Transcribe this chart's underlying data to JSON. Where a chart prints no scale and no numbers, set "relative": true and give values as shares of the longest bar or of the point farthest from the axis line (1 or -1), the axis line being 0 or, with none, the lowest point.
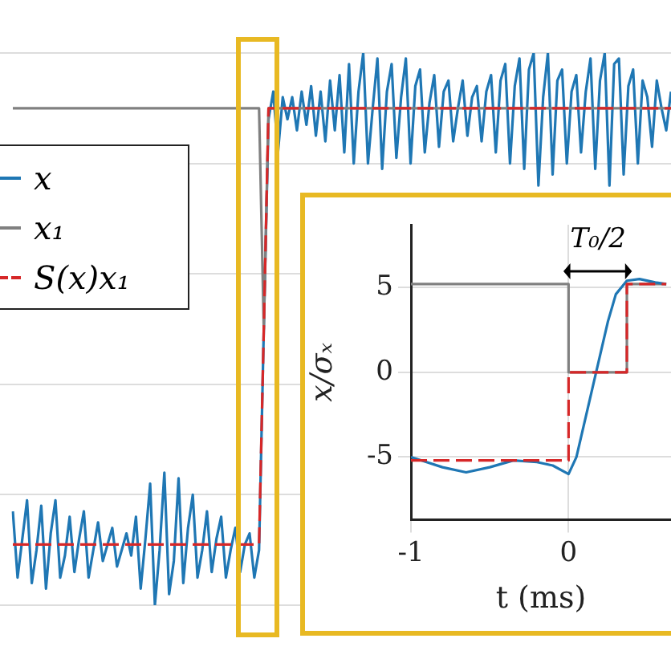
{
  "chart_data": [
    {
      "type": "line",
      "relative": true,
      "grid": "y",
      "legend": "left",
      "marker": "none",
      "categories": [
        null,
        null,
        null,
        null,
        null,
        null,
        null,
        null,
        null,
        null,
        null,
        null,
        null,
        null,
        null,
        null,
        null,
        null,
        null,
        null,
        null,
        null,
        null,
        null,
        null,
        null,
        null,
        null,
        null,
        null,
        null,
        null,
        null,
        null,
        null,
        null,
        null,
        null,
        null,
        null,
        null,
        null,
        null,
        null,
        null,
        null,
        null,
        null,
        null,
        null,
        null,
        null,
        null,
        null,
        null,
        null,
        null,
        null,
        null,
        null,
        null,
        null,
        null,
        null,
        null,
        null,
        null,
        null,
        null,
        null,
        null,
        null,
        null,
        null,
        null,
        null,
        null,
        null,
        null,
        null,
        null,
        null,
        null,
        null,
        null,
        null,
        null,
        null,
        null,
        null,
        null,
        null,
        null,
        null,
        null,
        null,
        null,
        null,
        null,
        null,
        null,
        null,
        null,
        null,
        null,
        null,
        null,
        null,
        null,
        null,
        null,
        null,
        null,
        null,
        null,
        null,
        null,
        null,
        null,
        null,
        null,
        null,
        null,
        null,
        null,
        null,
        null,
        null,
        null,
        null,
        null,
        null,
        null,
        null,
        null,
        null,
        null,
        null,
        null,
        null
      ],
      "series": [
        {
          "name": "x",
          "color": "#1f77b4",
          "line_style": "solid",
          "values": [
            0.17,
            0.05,
            0.12,
            0.19,
            0.04,
            0.1,
            0.18,
            0.03,
            0.13,
            0.19,
            0.05,
            0.09,
            0.16,
            0.06,
            0.12,
            0.17,
            0.05,
            0.1,
            0.15,
            0.08,
            0.11,
            0.14,
            0.07,
            0.1,
            0.13,
            0.09,
            0.16,
            0.03,
            0.12,
            0.22,
            0.0,
            0.1,
            0.24,
            0.02,
            0.08,
            0.23,
            0.04,
            0.14,
            0.2,
            0.05,
            0.1,
            0.17,
            0.06,
            0.12,
            0.16,
            0.05,
            0.1,
            0.14,
            0.06,
            0.11,
            0.13,
            0.05,
            0.1,
            0.5,
            0.88,
            0.93,
            0.82,
            0.92,
            0.88,
            0.92,
            0.86,
            0.93,
            0.87,
            0.94,
            0.85,
            0.93,
            0.84,
            0.95,
            0.86,
            0.96,
            0.82,
            0.98,
            0.8,
            0.93,
            1.0,
            0.8,
            0.9,
            0.99,
            0.79,
            0.93,
            0.98,
            0.81,
            0.92,
            0.99,
            0.8,
            0.94,
            0.97,
            0.82,
            0.91,
            0.96,
            0.83,
            0.93,
            0.95,
            0.84,
            0.9,
            0.95,
            0.85,
            0.92,
            0.94,
            0.84,
            0.93,
            0.96,
            0.82,
            0.95,
            0.98,
            0.8,
            0.94,
            0.99,
            0.79,
            0.97,
            1.0,
            0.76,
            0.92,
            1.0,
            0.78,
            0.95,
            0.97,
            0.8,
            0.93,
            0.96,
            0.82,
            0.93,
            0.99,
            0.79,
            0.95,
            1.0,
            0.76,
            0.98,
            0.99,
            0.78,
            0.94,
            0.97,
            0.8,
            0.95,
            0.92,
            0.83,
            0.95,
            0.9,
            0.86,
            0.93
          ]
        },
        {
          "name": "x₁",
          "color": "#808080",
          "line_style": "solid",
          "values": [
            0.9,
            0.9,
            0.9,
            0.9,
            0.9,
            0.9,
            0.9,
            0.9,
            0.9,
            0.9,
            0.9,
            0.9,
            0.9,
            0.9,
            0.9,
            0.9,
            0.9,
            0.9,
            0.9,
            0.9,
            0.9,
            0.9,
            0.9,
            0.9,
            0.9,
            0.9,
            0.9,
            0.9,
            0.9,
            0.9,
            0.9,
            0.9,
            0.9,
            0.9,
            0.9,
            0.9,
            0.9,
            0.9,
            0.9,
            0.9,
            0.9,
            0.9,
            0.9,
            0.9,
            0.9,
            0.9,
            0.9,
            0.9,
            0.9,
            0.9,
            0.9,
            0.9,
            0.9,
            0.5,
            0.9,
            0.9,
            0.9,
            0.9,
            0.9,
            0.9,
            0.9,
            0.9,
            0.9,
            0.9,
            0.9,
            0.9,
            0.9,
            0.9,
            0.9,
            0.9,
            0.9,
            0.9,
            0.9,
            0.9,
            0.9,
            0.9,
            0.9,
            0.9,
            0.9,
            0.9,
            0.9,
            0.9,
            0.9,
            0.9,
            0.9,
            0.9,
            0.9,
            0.9,
            0.9,
            0.9,
            0.9,
            0.9,
            0.9,
            0.9,
            0.9,
            0.9,
            0.9,
            0.9,
            0.9,
            0.9,
            0.9,
            0.9,
            0.9,
            0.9,
            0.9,
            0.9,
            0.9,
            0.9,
            0.9,
            0.9,
            0.9,
            0.9,
            0.9,
            0.9,
            0.9,
            0.9,
            0.9,
            0.9,
            0.9,
            0.9,
            0.9,
            0.9,
            0.9,
            0.9,
            0.9,
            0.9,
            0.9,
            0.9,
            0.9,
            0.9,
            0.9,
            0.9,
            0.9,
            0.9,
            0.9,
            0.9,
            0.9,
            0.9,
            0.9,
            0.9
          ]
        },
        {
          "name": "S(x)x₁",
          "color": "#d62728",
          "line_style": "dashed",
          "values": [
            0.11,
            0.11,
            0.11,
            0.11,
            0.11,
            0.11,
            0.11,
            0.11,
            0.11,
            0.11,
            0.11,
            0.11,
            0.11,
            0.11,
            0.11,
            0.11,
            0.11,
            0.11,
            0.11,
            0.11,
            0.11,
            0.11,
            0.11,
            0.11,
            0.11,
            0.11,
            0.11,
            0.11,
            0.11,
            0.11,
            0.11,
            0.11,
            0.11,
            0.11,
            0.11,
            0.11,
            0.11,
            0.11,
            0.11,
            0.11,
            0.11,
            0.11,
            0.11,
            0.11,
            0.11,
            0.11,
            0.11,
            0.11,
            0.11,
            0.11,
            0.11,
            0.11,
            0.11,
            0.5,
            0.9,
            0.9,
            0.9,
            0.9,
            0.9,
            0.9,
            0.9,
            0.9,
            0.9,
            0.9,
            0.9,
            0.9,
            0.9,
            0.9,
            0.9,
            0.9,
            0.9,
            0.9,
            0.9,
            0.9,
            0.9,
            0.9,
            0.9,
            0.9,
            0.9,
            0.9,
            0.9,
            0.9,
            0.9,
            0.9,
            0.9,
            0.9,
            0.9,
            0.9,
            0.9,
            0.9,
            0.9,
            0.9,
            0.9,
            0.9,
            0.9,
            0.9,
            0.9,
            0.9,
            0.9,
            0.9,
            0.9,
            0.9,
            0.9,
            0.9,
            0.9,
            0.9,
            0.9,
            0.9,
            0.9,
            0.9,
            0.9,
            0.9,
            0.9,
            0.9,
            0.9,
            0.9,
            0.9,
            0.9,
            0.9,
            0.9,
            0.9,
            0.9,
            0.9,
            0.9,
            0.9,
            0.9,
            0.9,
            0.9,
            0.9,
            0.9,
            0.9,
            0.9,
            0.9,
            0.9,
            0.9,
            0.9,
            0.9,
            0.9,
            0.9,
            0.9
          ]
        }
      ]
    },
    {
      "type": "line",
      "xlabel": "t (ms)",
      "ylabel": "x/σₓ",
      "grid": true,
      "marker": "none",
      "xlim": [
        -1,
        0.65
      ],
      "xticks": [
        -1,
        0
      ],
      "ylim": [
        -8.7,
        8.7
      ],
      "yticks": [
        -5,
        0,
        5
      ],
      "annotations": [
        "T₀/2"
      ],
      "series": [
        {
          "color": "#808080",
          "line_style": "solid",
          "x": [
            -1,
            0,
            0,
            0.37,
            0.37,
            0.62
          ],
          "values": [
            5.2,
            5.2,
            0,
            0,
            5.2,
            5.2
          ]
        },
        {
          "color": "#d62728",
          "line_style": "dashed",
          "x": [
            -1,
            0,
            0,
            0.37,
            0.37,
            0.62
          ],
          "values": [
            -5.2,
            -5.2,
            0,
            0,
            5.2,
            5.2
          ]
        },
        {
          "color": "#1f77b4",
          "line_style": "solid",
          "x": [
            -1,
            -0.8,
            -0.65,
            -0.5,
            -0.35,
            -0.2,
            -0.1,
            0,
            0.05,
            0.1,
            0.15,
            0.2,
            0.25,
            0.3,
            0.37,
            0.45,
            0.55,
            0.62
          ],
          "values": [
            -5.0,
            -5.6,
            -5.9,
            -5.6,
            -5.2,
            -5.3,
            -5.5,
            -6.0,
            -5.0,
            -3.0,
            -1.0,
            1.0,
            3.0,
            4.6,
            5.4,
            5.5,
            5.3,
            5.2
          ]
        }
      ]
    }
  ]
}
